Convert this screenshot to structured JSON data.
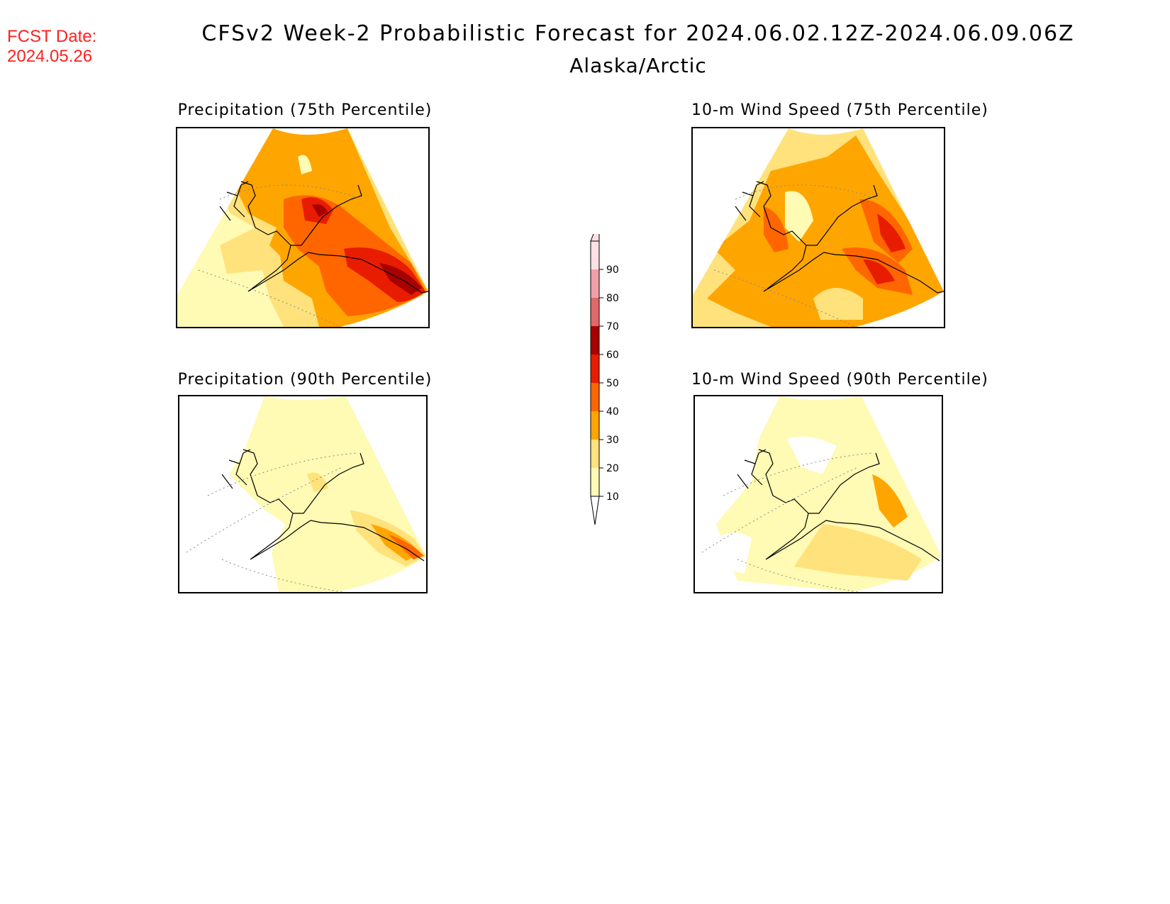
{
  "header": {
    "fcst_label": "FCST Date:",
    "fcst_date": "2024.05.26",
    "title": "CFSv2 Week-2 Probabilistic Forecast for 2024.06.02.12Z-2024.06.09.06Z",
    "subtitle": "Alaska/Arctic"
  },
  "panels": [
    {
      "title": "Precipitation (75th Percentile)"
    },
    {
      "title": "10-m Wind Speed (75th Percentile)"
    },
    {
      "title": "Precipitation (90th Percentile)"
    },
    {
      "title": "10-m Wind Speed (90th Percentile)"
    }
  ],
  "colorbar": {
    "levels": [
      "10",
      "20",
      "30",
      "40",
      "50",
      "60",
      "70",
      "80",
      "90"
    ],
    "colors": {
      "c10": "#fffab4",
      "c20": "#ffe27c",
      "c30": "#ffa500",
      "c40": "#ff6600",
      "c50": "#e81c00",
      "c60": "#a80000",
      "c70": "#e06868",
      "c80": "#f2a0a8",
      "c90": "#fde0e4"
    }
  }
}
